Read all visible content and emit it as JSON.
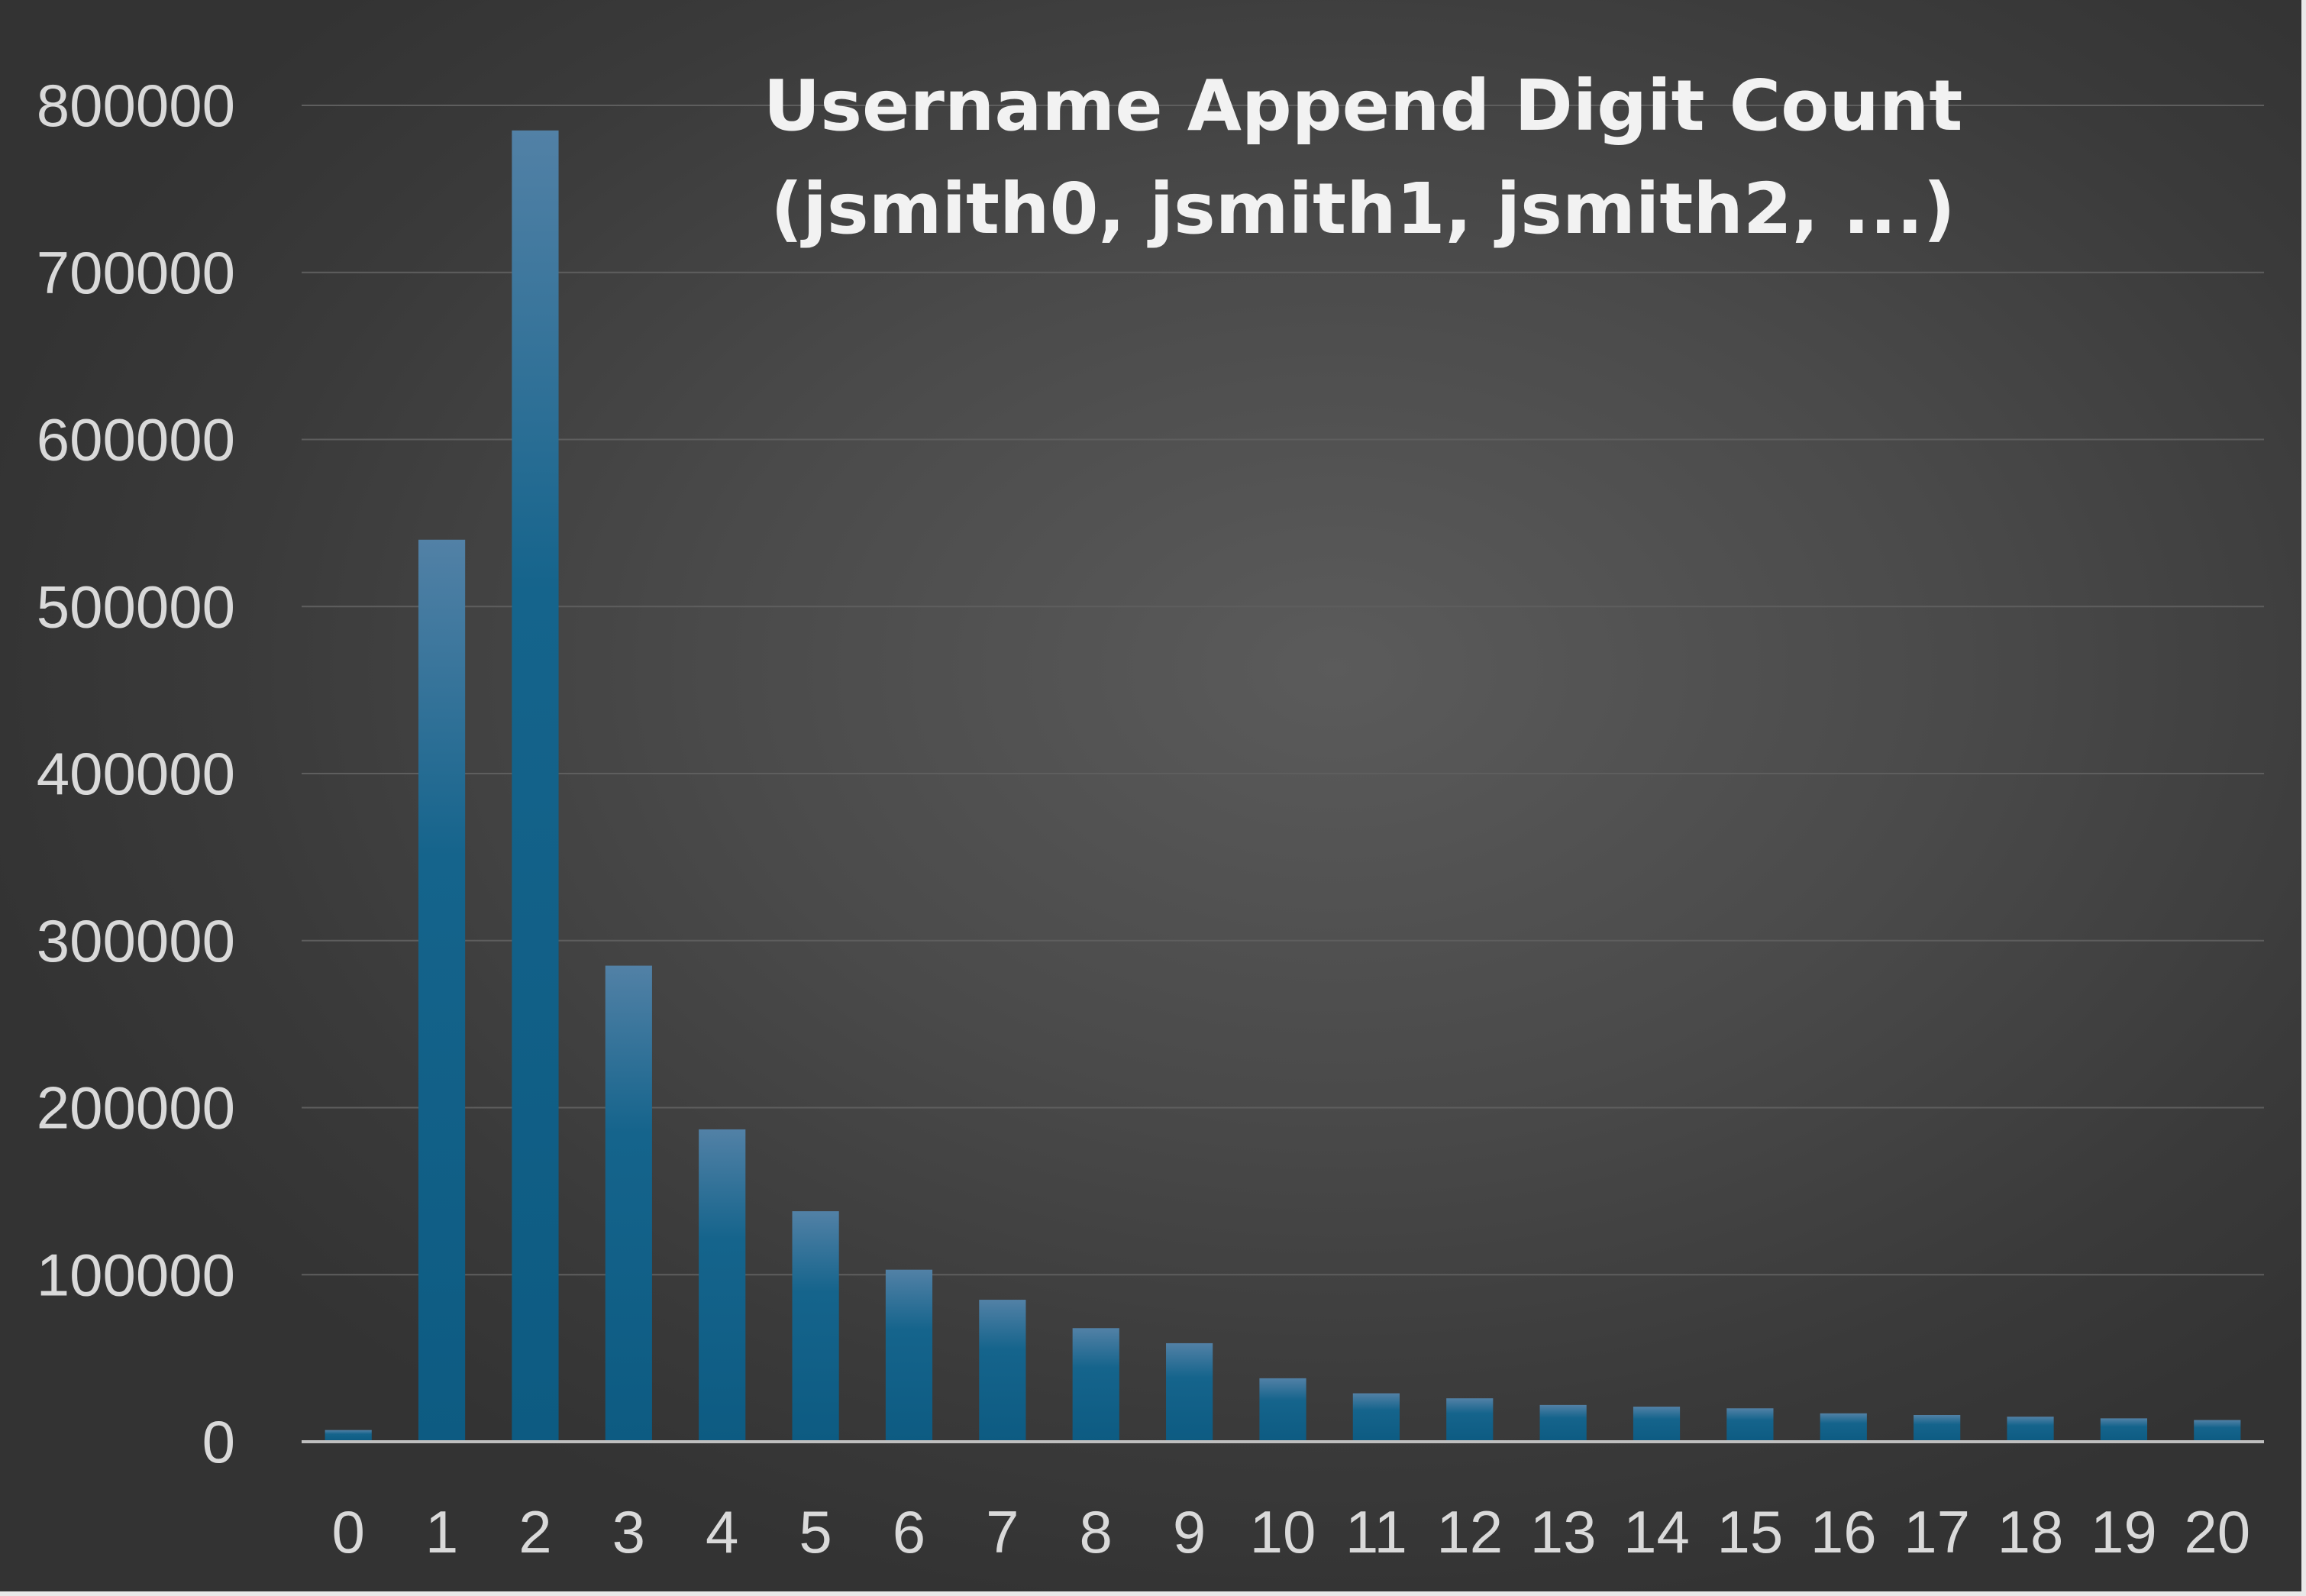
{
  "chart_data": {
    "type": "bar",
    "title": "Username Append Digit Count",
    "subtitle": "(jsmith0, jsmith1, jsmith2, ...)",
    "xlabel": "",
    "ylabel": "",
    "categories": [
      "0",
      "1",
      "2",
      "3",
      "4",
      "5",
      "6",
      "7",
      "8",
      "9",
      "10",
      "11",
      "12",
      "13",
      "14",
      "15",
      "16",
      "17",
      "18",
      "19",
      "20"
    ],
    "values": [
      7000,
      540000,
      785000,
      285000,
      187000,
      138000,
      103000,
      85000,
      68000,
      59000,
      38000,
      29000,
      26000,
      22000,
      21000,
      20000,
      17000,
      16000,
      15000,
      14000,
      13000
    ],
    "y_ticks": [
      "0",
      "100000",
      "200000",
      "300000",
      "400000",
      "500000",
      "600000",
      "700000",
      "800000"
    ],
    "ylim": [
      0,
      800000
    ],
    "grid": true,
    "legend": "none",
    "colors": {
      "bar_top": "#5281a6",
      "bar_bottom": "#0d5b82",
      "gridline": "#5e5e5e",
      "axis": "#bfbfbf"
    }
  }
}
